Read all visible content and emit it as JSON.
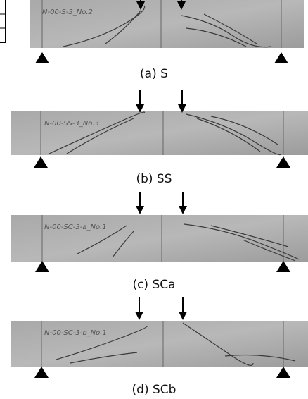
{
  "panels": [
    {
      "caption": "(a)  S",
      "specimen_label": "N-00-S-3_No.2"
    },
    {
      "caption": "(b)  SS",
      "specimen_label": "N-00-SS-3_No.3"
    },
    {
      "caption": "(c)  SCa",
      "specimen_label": "N-00-SC-3-a_No.1"
    },
    {
      "caption": "(d)  SCb",
      "specimen_label": "N-00-SC-3-b_No.1"
    }
  ]
}
